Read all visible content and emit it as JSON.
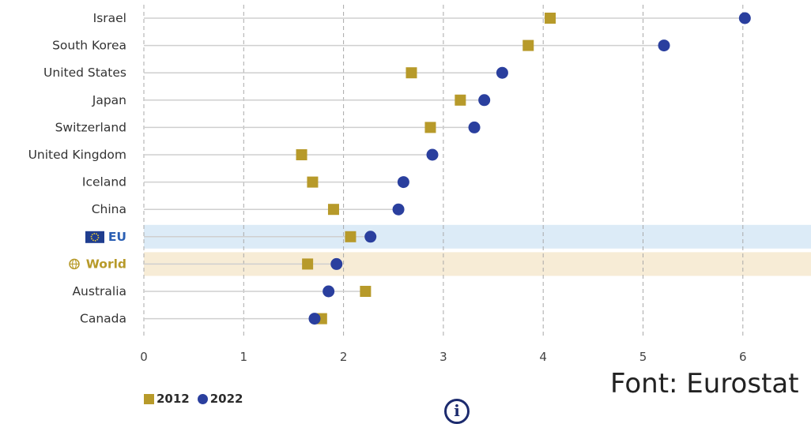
{
  "chart_data": {
    "type": "scatter",
    "xlim": [
      0,
      6
    ],
    "xticks": [
      "0",
      "1",
      "2",
      "3",
      "4",
      "5",
      "6"
    ],
    "grid": "vertical-dashed",
    "legend_placement": "bottom-left",
    "categories": [
      "Israel",
      "South Korea",
      "United States",
      "Japan",
      "Switzerland",
      "United Kingdom",
      "Iceland",
      "China",
      "EU",
      "World",
      "Australia",
      "Canada"
    ],
    "highlighted": {
      "EU": "#dcebf7",
      "World": "#f7ecd6"
    },
    "label_colors": {
      "EU": "#2b5fb3",
      "World": "#b79a2a"
    },
    "series": [
      {
        "name": "2012",
        "marker": "square",
        "color": "#b79a2a",
        "values": [
          4.07,
          3.85,
          2.68,
          3.17,
          2.87,
          1.58,
          1.69,
          1.9,
          2.07,
          1.64,
          2.22,
          1.78
        ]
      },
      {
        "name": "2022",
        "marker": "circle",
        "color": "#2a3f9e",
        "values": [
          6.02,
          5.21,
          3.59,
          3.41,
          3.31,
          2.89,
          2.6,
          2.55,
          2.27,
          1.93,
          1.85,
          1.71
        ]
      }
    ]
  },
  "source_text": "Font: Eurostat",
  "icons": {
    "eu_flag": "eu-flag-icon",
    "world": "globe-icon",
    "info": "info-icon"
  }
}
